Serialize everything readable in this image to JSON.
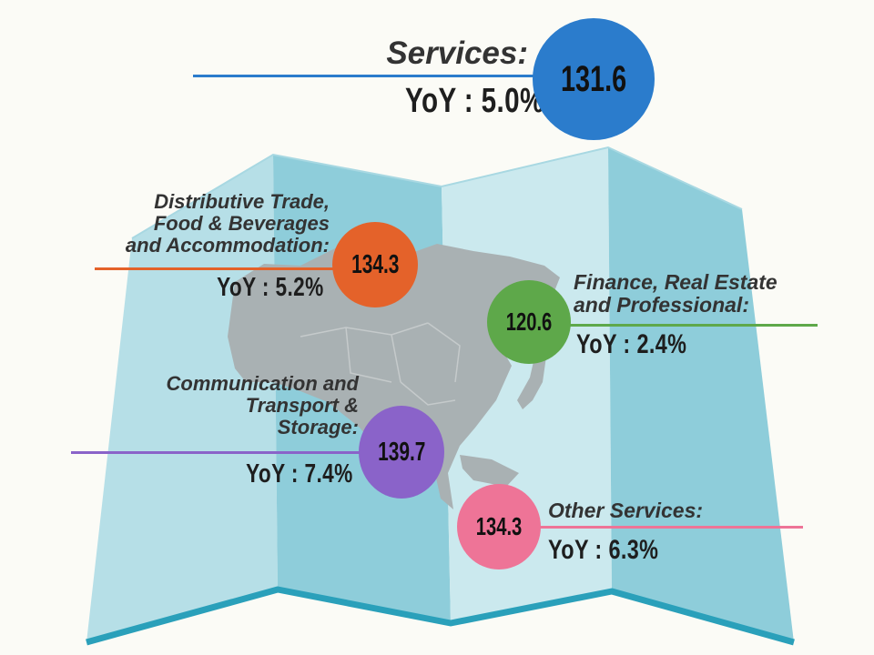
{
  "categories": [
    {
      "id": "services",
      "label_lines": [
        "Services:"
      ],
      "index": "131.6",
      "yoy": "YoY : 5.0%",
      "color": "#2b7ccc"
    },
    {
      "id": "distributive",
      "label_lines": [
        "Distributive Trade,",
        "Food & Beverages",
        "and Accommodation:"
      ],
      "index": "134.3",
      "yoy": "YoY : 5.2%",
      "color": "#e4622a"
    },
    {
      "id": "finance",
      "label_lines": [
        "Finance, Real Estate",
        "and Professional:"
      ],
      "index": "120.6",
      "yoy": "YoY : 2.4%",
      "color": "#5ea84a"
    },
    {
      "id": "communication",
      "label_lines": [
        "Communication and",
        "Transport &",
        "Storage:"
      ],
      "index": "139.7",
      "yoy": "YoY : 7.4%",
      "color": "#8a63c9"
    },
    {
      "id": "other",
      "label_lines": [
        "Other Services:"
      ],
      "index": "134.3",
      "yoy": "YoY : 6.3%",
      "color": "#ee7497"
    }
  ],
  "colors": {
    "map_light": "#b5dfe6",
    "map_dark": "#8cccd9",
    "map_edge": "#2fa2bc",
    "land": "#a9b1b3",
    "background": "#fbfbf6"
  }
}
